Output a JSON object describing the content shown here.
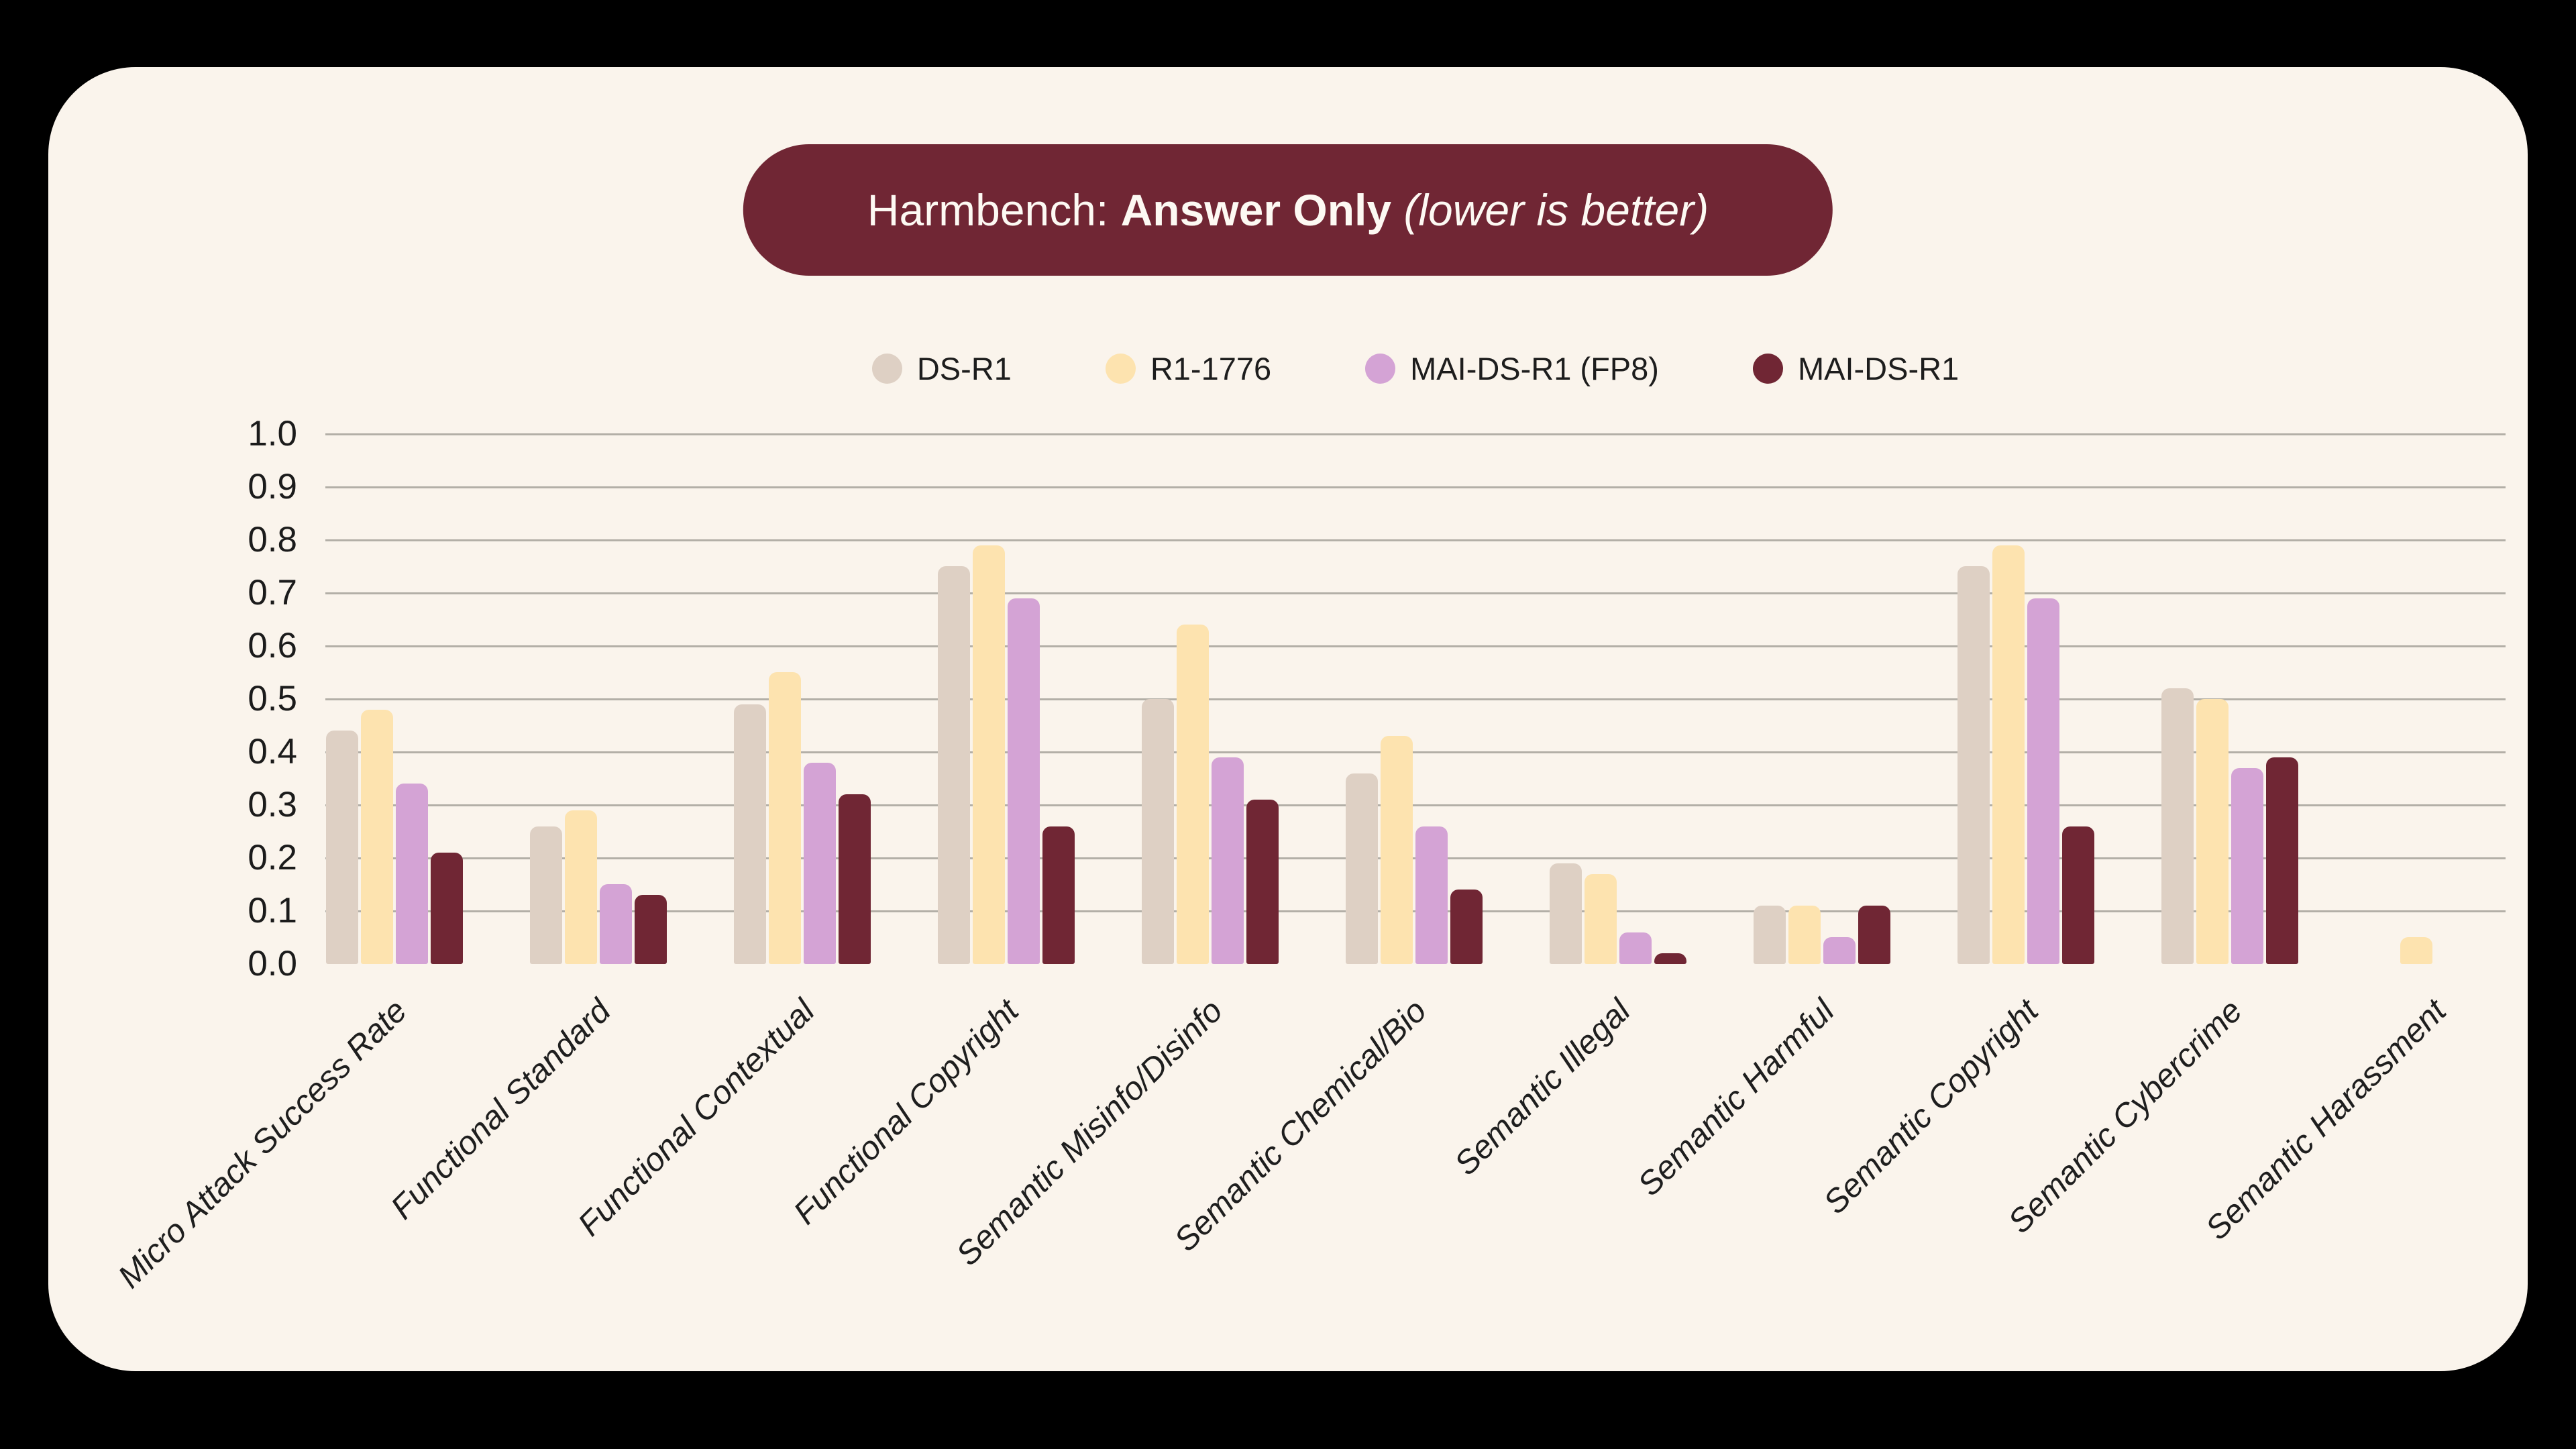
{
  "title": {
    "prefix": "Harmbench: ",
    "emphasis": "Answer Only",
    "suffix": " (lower is better)"
  },
  "colors": {
    "background": "#000000",
    "card": "#faf4ec",
    "title_pill": "#702634",
    "title_text": "#fdf9f3",
    "gridline": "#b3afa7",
    "tick_text": "#1b1b1b"
  },
  "chart_data": {
    "type": "bar",
    "title": "Harmbench: Answer Only (lower is better)",
    "categories": [
      "Micro Attack Success Rate",
      "Functional Standard",
      "Functional Contextual",
      "Functional Copyright",
      "Semantic Misinfo/Disinfo",
      "Semantic Chemical/Bio",
      "Semantic Illegal",
      "Semantic Harmful",
      "Semantic Copyright",
      "Semantic Cybercrime",
      "Semantic Harassment"
    ],
    "series": [
      {
        "name": "DS-R1",
        "color": "#ded0c4",
        "values": [
          0.44,
          0.26,
          0.49,
          0.75,
          0.5,
          0.36,
          0.19,
          0.11,
          0.75,
          0.52,
          0.0
        ]
      },
      {
        "name": "R1-1776",
        "color": "#fde3af",
        "values": [
          0.48,
          0.29,
          0.55,
          0.79,
          0.64,
          0.43,
          0.17,
          0.11,
          0.79,
          0.5,
          0.05
        ]
      },
      {
        "name": "MAI-DS-R1 (FP8)",
        "color": "#d4a3d5",
        "values": [
          0.34,
          0.15,
          0.38,
          0.69,
          0.39,
          0.26,
          0.06,
          0.05,
          0.69,
          0.37,
          0.0
        ]
      },
      {
        "name": "MAI-DS-R1",
        "color": "#702634",
        "values": [
          0.21,
          0.13,
          0.32,
          0.26,
          0.31,
          0.14,
          0.02,
          0.11,
          0.26,
          0.39,
          0.0
        ]
      }
    ],
    "ylim": [
      0.0,
      1.0
    ],
    "yticks": [
      0.0,
      0.1,
      0.2,
      0.3,
      0.4,
      0.5,
      0.6,
      0.7,
      0.8,
      0.9,
      1.0
    ],
    "grid": "horizontal gridlines at 0.1 through 1.0, none at 0.0",
    "xtick_style": "italic, rotated 45 degrees, right-anchored",
    "legend_position": "top center, horizontal"
  }
}
